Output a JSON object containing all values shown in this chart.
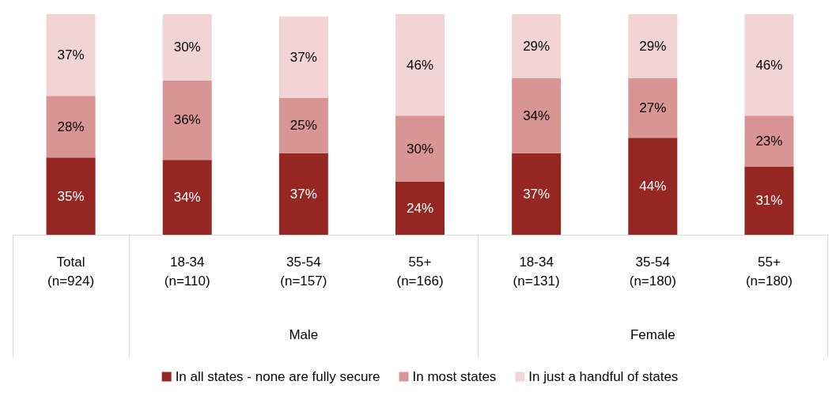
{
  "chart_data": {
    "type": "bar",
    "stacked": true,
    "legend": "bottom",
    "grid": false,
    "categories": [
      "Total\n(n=924)",
      "18-34\n(n=110)",
      "35-54\n(n=157)",
      "55+\n(n=166)",
      "18-34\n(n=131)",
      "35-54\n(n=180)",
      "55+\n(n=180)"
    ],
    "series": [
      {
        "name": "In all states - none are fully secure",
        "color": "#952622",
        "values": [
          35,
          34,
          37,
          24,
          37,
          44,
          31
        ],
        "value_labels": [
          "35%",
          "34%",
          "37%",
          "24%",
          "37%",
          "44%",
          "31%"
        ]
      },
      {
        "name": "In most states",
        "color": "#d99594",
        "values": [
          28,
          36,
          25,
          30,
          34,
          27,
          23
        ],
        "value_labels": [
          "28%",
          "36%",
          "25%",
          "30%",
          "34%",
          "27%",
          "23%"
        ]
      },
      {
        "name": "In just a handful of states",
        "color": "#f2d4d5",
        "values": [
          37,
          30,
          37,
          46,
          29,
          29,
          46
        ],
        "value_labels": [
          "37%",
          "30%",
          "37%",
          "46%",
          "29%",
          "29%",
          "46%"
        ]
      }
    ],
    "annotations": [
      "Male",
      "Female"
    ]
  }
}
